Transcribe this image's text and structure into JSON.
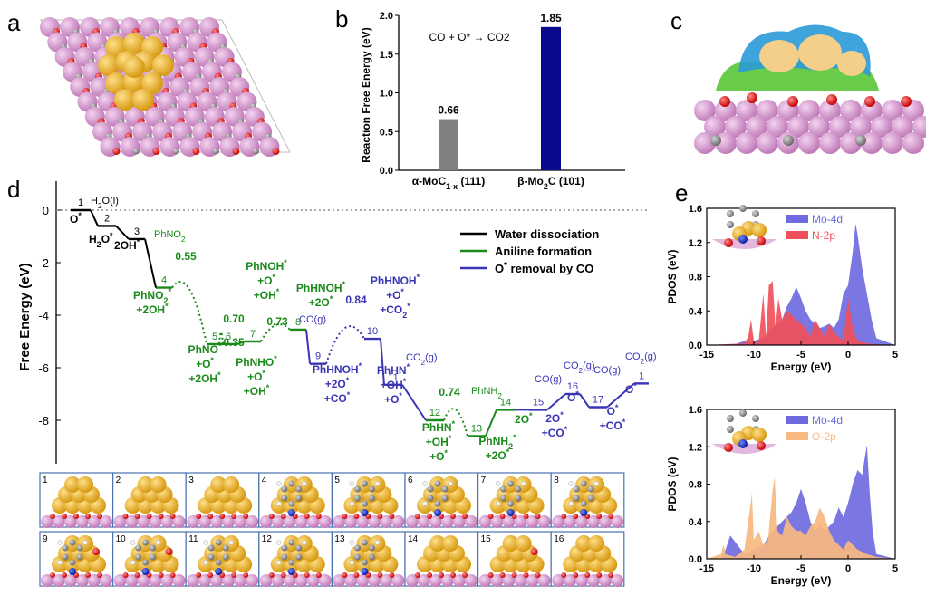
{
  "panels": {
    "a": "a",
    "b": "b",
    "c": "c",
    "d": "d",
    "e": "e"
  },
  "chart_data": [
    {
      "type": "bar",
      "panel": "b",
      "annotation": "CO + O* → CO2",
      "ylabel": "Reaction Free Energy (eV)",
      "categories": [
        "α-MoC1-x (111)",
        "β-Mo2C (101)"
      ],
      "values": [
        0.66,
        1.85
      ],
      "value_labels": [
        "0.66",
        "1.85"
      ],
      "bar_colors": [
        "#808080",
        "#0a0a8f"
      ],
      "ylim": [
        0,
        2.0
      ],
      "yticks": [
        "0.0",
        "0.5",
        "1.0",
        "1.5",
        "2.0"
      ]
    },
    {
      "type": "line",
      "panel": "d",
      "ylabel": "Free Energy (eV)",
      "yticks": [
        "0",
        "-2",
        "-4",
        "-6",
        "-8"
      ],
      "ylim": [
        -10,
        0.5
      ],
      "legend": [
        "Water dissociation",
        "Aniline formation",
        "O* removal by CO"
      ],
      "legend_position": "top-right",
      "series_colors": {
        "water": "#000000",
        "aniline": "#1a8a1a",
        "co": "#3a35b5"
      },
      "states": [
        {
          "n": "1",
          "y": 0.0,
          "label": "O*",
          "c": "water"
        },
        {
          "n": "2",
          "y": -0.6,
          "label": "H2O*",
          "c": "water"
        },
        {
          "n": "3",
          "y": -1.1,
          "label": "2OH*",
          "c": "water"
        },
        {
          "n": "4",
          "y": -2.95,
          "label": "PhNO2* +2OH*",
          "c": "aniline"
        },
        {
          "n": "5",
          "y": -5.1,
          "label": "PhNO* +O* +2OH*",
          "c": "aniline"
        },
        {
          "n": "6",
          "y": -5.1,
          "label": "PhNHO* +O* +OH*",
          "c": "aniline"
        },
        {
          "n": "7",
          "y": -5.0,
          "label": "PhNOH* +O* +OH*",
          "c": "aniline"
        },
        {
          "n": "8",
          "y": -4.55,
          "label": "PhHNOH* +2O*",
          "c": "aniline"
        },
        {
          "n": "9",
          "y": -5.85,
          "label": "PhHNOH* +2O* +CO*",
          "c": "co"
        },
        {
          "n": "10",
          "y": -4.9,
          "label": "PhHNOH* +O* +CO2*",
          "c": "co"
        },
        {
          "n": "11",
          "y": -6.65,
          "label": "PhHN* +OH* +O*",
          "c": "co"
        },
        {
          "n": "12",
          "y": -8.0,
          "label": "PhHN* +OH* +O*",
          "c": "aniline"
        },
        {
          "n": "13",
          "y": -8.6,
          "label": "PhNH2* +2O*",
          "c": "aniline"
        },
        {
          "n": "14",
          "y": -7.6,
          "label": "2O*",
          "c": "aniline"
        },
        {
          "n": "15",
          "y": -7.6,
          "label": "2O* +CO*",
          "c": "co"
        },
        {
          "n": "16",
          "y": -7.0,
          "label": "O*",
          "c": "co"
        },
        {
          "n": "17",
          "y": -7.5,
          "label": "O* +CO*",
          "c": "co"
        },
        {
          "n": "1",
          "y": -6.6,
          "label": "O*",
          "c": "co"
        }
      ],
      "barriers": [
        {
          "label": "0.55",
          "y": -2.4,
          "between": [
            "4",
            "5"
          ]
        },
        {
          "label": "0.70",
          "y": -4.4,
          "between": [
            "5",
            "6"
          ]
        },
        {
          "label": "0.35",
          "y": -4.75,
          "between": [
            "5",
            "6"
          ]
        },
        {
          "label": "0.73",
          "y": -4.37,
          "between": [
            "7",
            "8"
          ]
        },
        {
          "label": "0.84",
          "y": -4.0,
          "between": [
            "9",
            "10"
          ]
        },
        {
          "label": "0.74",
          "y": -7.26,
          "between": [
            "12",
            "13"
          ]
        }
      ],
      "annotations": [
        "H2O(l)",
        "PhNO2",
        "CO(g)",
        "CO2(g)",
        "PhNH2",
        "CO(g)",
        "CO2(g)",
        "CO(g)",
        "CO2(g)"
      ],
      "snapshot_labels": [
        "1",
        "2",
        "3",
        "4",
        "5",
        "6",
        "7",
        "8",
        "9",
        "10",
        "11",
        "12",
        "13",
        "14",
        "15",
        "16"
      ]
    },
    {
      "type": "area",
      "panel": "e-top",
      "ylabel": "PDOS (eV)",
      "xlabel": "Energy (eV)",
      "xlim": [
        -15,
        5
      ],
      "ylim": [
        0,
        1.6
      ],
      "xticks": [
        "-15",
        "-10",
        "-5",
        "0",
        "5"
      ],
      "yticks": [
        "0.0",
        "0.4",
        "0.8",
        "1.2",
        "1.6"
      ],
      "legend_position": "top-right",
      "series": [
        {
          "name": "Mo-4d",
          "color": "#6f6ae0",
          "x": [
            -15,
            -12,
            -11,
            -10.5,
            -10,
            -9,
            -8,
            -7,
            -6.5,
            -6,
            -5.5,
            -5,
            -4.5,
            -4,
            -3.5,
            -3,
            -2.5,
            -2,
            -1.5,
            -1,
            -0.5,
            0,
            0.5,
            0.8,
            1,
            1.5,
            2,
            2.5,
            3,
            5
          ],
          "y": [
            0,
            0.01,
            0.05,
            0.02,
            0.05,
            0.08,
            0.2,
            0.3,
            0.45,
            0.55,
            0.68,
            0.55,
            0.4,
            0.3,
            0.25,
            0.2,
            0.22,
            0.25,
            0.2,
            0.3,
            0.6,
            0.7,
            1.1,
            1.42,
            1.3,
            0.9,
            0.6,
            0.3,
            0.08,
            0
          ]
        },
        {
          "name": "N-2p",
          "color": "#f0505a",
          "x": [
            -15,
            -11,
            -10.6,
            -10.3,
            -10,
            -9.5,
            -9,
            -8.7,
            -8.4,
            -8,
            -7.7,
            -7.4,
            -7,
            -6.5,
            -6,
            -5.5,
            -5,
            -4.5,
            -4,
            -3.5,
            -3,
            -2.5,
            -2,
            -1.5,
            -1,
            -0.5,
            0,
            0.5,
            1,
            2,
            3,
            5
          ],
          "y": [
            0,
            0.02,
            0.1,
            0.3,
            0.05,
            0.02,
            0.6,
            0.1,
            0.7,
            0.75,
            0.2,
            0.55,
            0.3,
            0.4,
            0.35,
            0.3,
            0.25,
            0.2,
            0.1,
            0.3,
            0.2,
            0.1,
            0.25,
            0.15,
            0.1,
            0.05,
            0.55,
            0.2,
            0.05,
            0.02,
            0.01,
            0
          ]
        }
      ]
    },
    {
      "type": "area",
      "panel": "e-bottom",
      "ylabel": "PDOS (eV)",
      "xlabel": "Energy (eV)",
      "xlim": [
        -15,
        5
      ],
      "ylim": [
        0,
        1.6
      ],
      "xticks": [
        "-15",
        "-10",
        "-5",
        "0",
        "5"
      ],
      "yticks": [
        "0.0",
        "0.4",
        "0.8",
        "1.2",
        "1.6"
      ],
      "legend_position": "top-right",
      "series": [
        {
          "name": "Mo-4d",
          "color": "#6f6ae0",
          "x": [
            -15,
            -13.5,
            -13,
            -12.5,
            -11,
            -10,
            -9,
            -8,
            -7,
            -6,
            -5.5,
            -5,
            -4.5,
            -4,
            -3.5,
            -3,
            -2.5,
            -2,
            -1.5,
            -1,
            -0.5,
            0,
            0.5,
            1,
            1.5,
            1.8,
            2,
            2.3,
            2.6,
            3,
            5
          ],
          "y": [
            0,
            0,
            0.1,
            0.25,
            0.05,
            0.1,
            0.15,
            0.3,
            0.4,
            0.5,
            0.6,
            0.75,
            0.6,
            0.4,
            0.3,
            0.35,
            0.3,
            0.35,
            0.4,
            0.55,
            0.45,
            0.6,
            0.8,
            0.95,
            0.9,
            1.1,
            1.22,
            0.7,
            0.3,
            0.05,
            0
          ]
        },
        {
          "name": "O-2p",
          "color": "#f7b980",
          "x": [
            -15,
            -13.5,
            -13.2,
            -13,
            -12,
            -11,
            -10.2,
            -10,
            -9.5,
            -9,
            -8.5,
            -8,
            -7.8,
            -7.5,
            -7,
            -6.5,
            -6,
            -5.5,
            -5,
            -4.5,
            -4,
            -3.5,
            -3,
            -2.5,
            -2,
            -1.5,
            -1,
            -0.5,
            0,
            0.5,
            1,
            2,
            3,
            5
          ],
          "y": [
            0,
            0.05,
            0.15,
            0.05,
            0.02,
            0.1,
            0.7,
            0.2,
            0.3,
            0.15,
            0.2,
            0.75,
            0.88,
            0.3,
            0.25,
            0.45,
            0.35,
            0.3,
            0.3,
            0.25,
            0.35,
            0.4,
            0.55,
            0.45,
            0.3,
            0.2,
            0.15,
            0.1,
            0.2,
            0.15,
            0.1,
            0.05,
            0.02,
            0
          ]
        }
      ]
    }
  ]
}
